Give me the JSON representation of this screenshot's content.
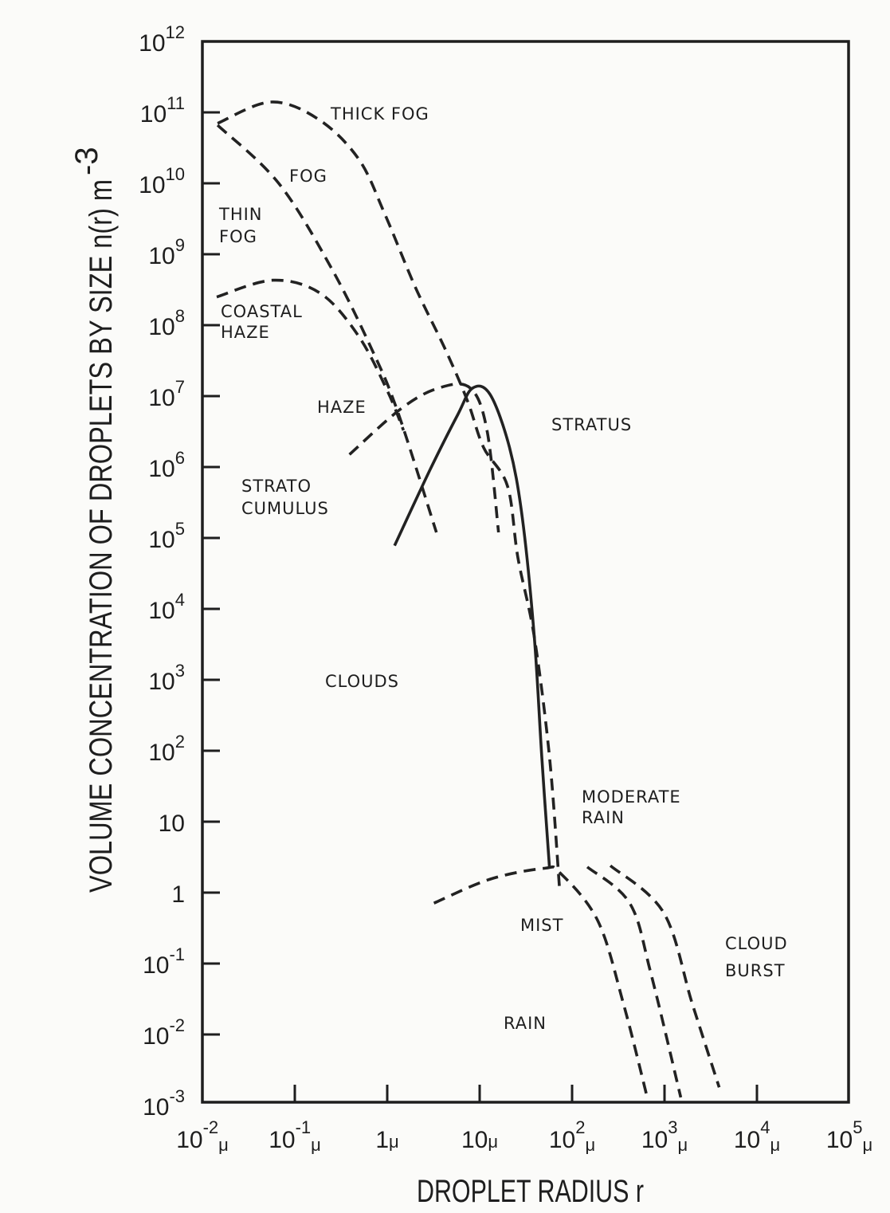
{
  "chart_data": {
    "type": "line",
    "title": "",
    "xlabel": "DROPLET RADIUS r",
    "ylabel": "VOLUME CONCENTRATION OF DROPLETS BY SIZE n(r) m",
    "ylabel_exp": "-3",
    "x_scale": "log",
    "y_scale": "log",
    "xlim": [
      0.01,
      100000
    ],
    "ylim": [
      0.001,
      1000000000000
    ],
    "grid": false,
    "x_ticks": [
      {
        "base": "10",
        "exp": "-2",
        "unit": "μ"
      },
      {
        "base": "10",
        "exp": "-1",
        "unit": "μ"
      },
      {
        "base": "1",
        "exp": "",
        "unit": "μ"
      },
      {
        "base": "10",
        "exp": "",
        "unit": "μ"
      },
      {
        "base": "10",
        "exp": "2",
        "unit": "μ"
      },
      {
        "base": "10",
        "exp": "3",
        "unit": "μ"
      },
      {
        "base": "10",
        "exp": "4",
        "unit": "μ"
      },
      {
        "base": "10",
        "exp": "5",
        "unit": "μ"
      }
    ],
    "y_ticks": [
      {
        "base": "10",
        "exp": "12"
      },
      {
        "base": "10",
        "exp": "11"
      },
      {
        "base": "10",
        "exp": "10"
      },
      {
        "base": "10",
        "exp": "9"
      },
      {
        "base": "10",
        "exp": "8"
      },
      {
        "base": "10",
        "exp": "7"
      },
      {
        "base": "10",
        "exp": "6"
      },
      {
        "base": "10",
        "exp": "5"
      },
      {
        "base": "10",
        "exp": "4"
      },
      {
        "base": "10",
        "exp": "3"
      },
      {
        "base": "10",
        "exp": "2"
      },
      {
        "base": "10",
        "exp": ""
      },
      {
        "base": "1",
        "exp": ""
      },
      {
        "base": "10",
        "exp": "-1"
      },
      {
        "base": "10",
        "exp": "-2"
      },
      {
        "base": "10",
        "exp": "-3"
      }
    ],
    "series": [
      {
        "style": "dashed",
        "x": [
          0.0146,
          0.055,
          0.18,
          0.49,
          0.94,
          2.0,
          4.3,
          7.4,
          11,
          20,
          26,
          39,
          57,
          73
        ],
        "y": [
          70000000000.0,
          140000000000.0,
          80000000000.0,
          22000000000.0,
          3700000000.0,
          350000000.0,
          44000000.0,
          8500000.0,
          1900000.0,
          540000.0,
          52000.0,
          4000.0,
          81,
          1.2
        ]
      },
      {
        "style": "dashed",
        "x": [
          0.0146,
          0.067,
          0.25,
          0.69,
          1.3,
          3.4
        ],
        "y": [
          66000000000.0,
          10000000000.0,
          630000000.0,
          44000000.0,
          6000000.0,
          120000.0
        ]
      },
      {
        "style": "dashed",
        "x": [
          0.0143,
          0.058,
          0.19,
          0.49,
          1.0,
          1.5
        ],
        "y": [
          250000000.0,
          430000000.0,
          280000000.0,
          70000000.0,
          12000000.0,
          3300000.0
        ]
      },
      {
        "style": "dashed",
        "x": [
          0.39,
          1.4,
          3.6,
          7.9,
          12,
          16
        ],
        "y": [
          1500000.0,
          6600000.0,
          13000000.0,
          13000000.0,
          3300000.0,
          120000.0
        ]
      },
      {
        "style": "solid",
        "x": [
          1.2,
          2.9,
          5.8,
          8.4,
          13,
          21,
          29,
          39,
          47,
          57
        ],
        "y": [
          78000.0,
          910000.0,
          5500000.0,
          13000000.0,
          10500000.0,
          1900000.0,
          190000.0,
          4000.0,
          81,
          2.2
        ]
      },
      {
        "style": "dashed",
        "x": [
          3.2,
          13,
          50,
          74,
          190,
          360,
          650
        ],
        "y": [
          0.71,
          1.55,
          2.2,
          1.9,
          0.4,
          0.027,
          0.0013
        ]
      },
      {
        "style": "dashed",
        "x": [
          146,
          420,
          710,
          1500
        ],
        "y": [
          2.3,
          0.71,
          0.074,
          0.0013
        ]
      },
      {
        "style": "dashed",
        "x": [
          260,
          980,
          2000,
          3900
        ],
        "y": [
          2.4,
          0.52,
          0.027,
          0.0018
        ]
      }
    ],
    "annotations": {
      "thick_fog": "THICK FOG",
      "fog": "FOG",
      "thin_fog": [
        "THIN",
        "FOG"
      ],
      "coastal_haze": [
        "COASTAL",
        "HAZE"
      ],
      "haze": "HAZE",
      "stratus": "STRATUS",
      "strato_cumulus": [
        "STRATO",
        "CUMULUS"
      ],
      "clouds": "CLOUDS",
      "moderate_rain": [
        "MODERATE",
        "RAIN"
      ],
      "mist": "MIST",
      "rain": "RAIN",
      "cloud_burst": [
        "CLOUD",
        "BURST"
      ]
    },
    "colors": {
      "ink": "#1e1e1e",
      "paper": "#fbfbf9"
    }
  }
}
